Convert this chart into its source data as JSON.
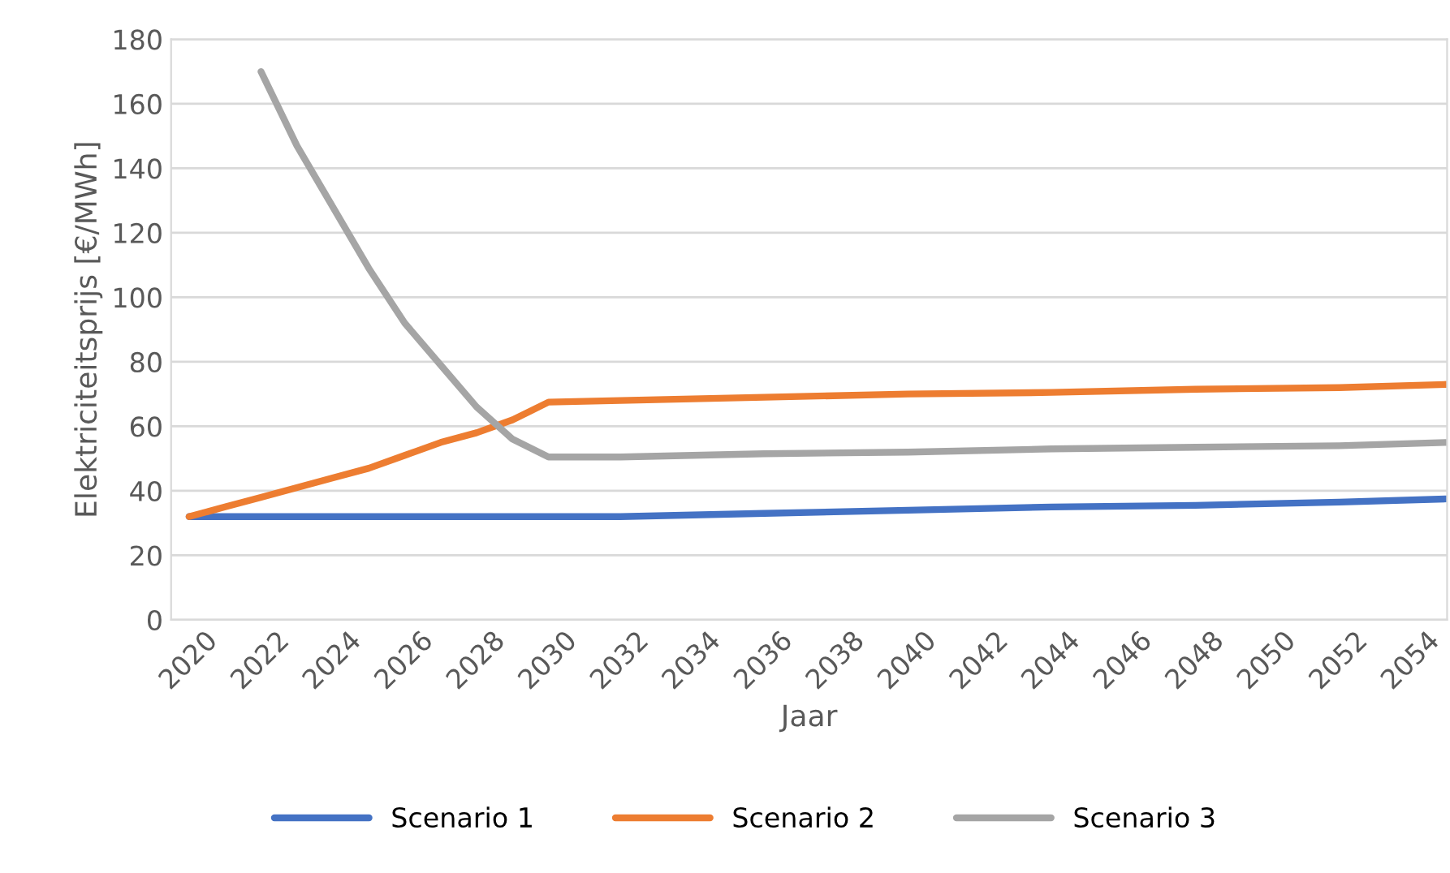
{
  "chart_data": {
    "type": "line",
    "xlabel": "Jaar",
    "ylabel": "Elektriciteitsprijs [€/MWh]",
    "xlim": [
      2019.5,
      2055
    ],
    "xticks": [
      2020,
      2022,
      2024,
      2026,
      2028,
      2030,
      2032,
      2034,
      2036,
      2038,
      2040,
      2042,
      2044,
      2046,
      2048,
      2050,
      2052,
      2054
    ],
    "ylim": [
      0,
      180
    ],
    "yticks": [
      0,
      20,
      40,
      60,
      80,
      100,
      120,
      140,
      160,
      180
    ],
    "grid": "y",
    "legend": "bottom",
    "line_style": "solid",
    "series": [
      {
        "name": "Scenario 1",
        "color": "#4472c4",
        "x": [
          2020,
          2024,
          2028,
          2032,
          2036,
          2040,
          2044,
          2048,
          2052,
          2055
        ],
        "values": [
          32,
          32,
          32,
          32,
          33,
          34,
          35,
          35.5,
          36.5,
          37.5
        ]
      },
      {
        "name": "Scenario 2",
        "color": "#ed7d31",
        "x": [
          2020,
          2021,
          2022,
          2023,
          2024,
          2025,
          2026,
          2027,
          2028,
          2029,
          2030,
          2032,
          2036,
          2040,
          2044,
          2048,
          2052,
          2055
        ],
        "values": [
          32,
          35,
          38,
          41,
          44,
          47,
          51,
          55,
          58,
          62,
          67.5,
          68,
          69,
          70,
          70.5,
          71.5,
          72,
          73
        ]
      },
      {
        "name": "Scenario 3",
        "color": "#a5a5a5",
        "x": [
          2022,
          2023,
          2024,
          2025,
          2026,
          2027,
          2028,
          2029,
          2030,
          2032,
          2036,
          2040,
          2044,
          2048,
          2052,
          2055
        ],
        "values": [
          170,
          147,
          128,
          109,
          92,
          79,
          66,
          56,
          50.5,
          50.5,
          51.5,
          52,
          53,
          53.5,
          54,
          55
        ]
      }
    ]
  }
}
